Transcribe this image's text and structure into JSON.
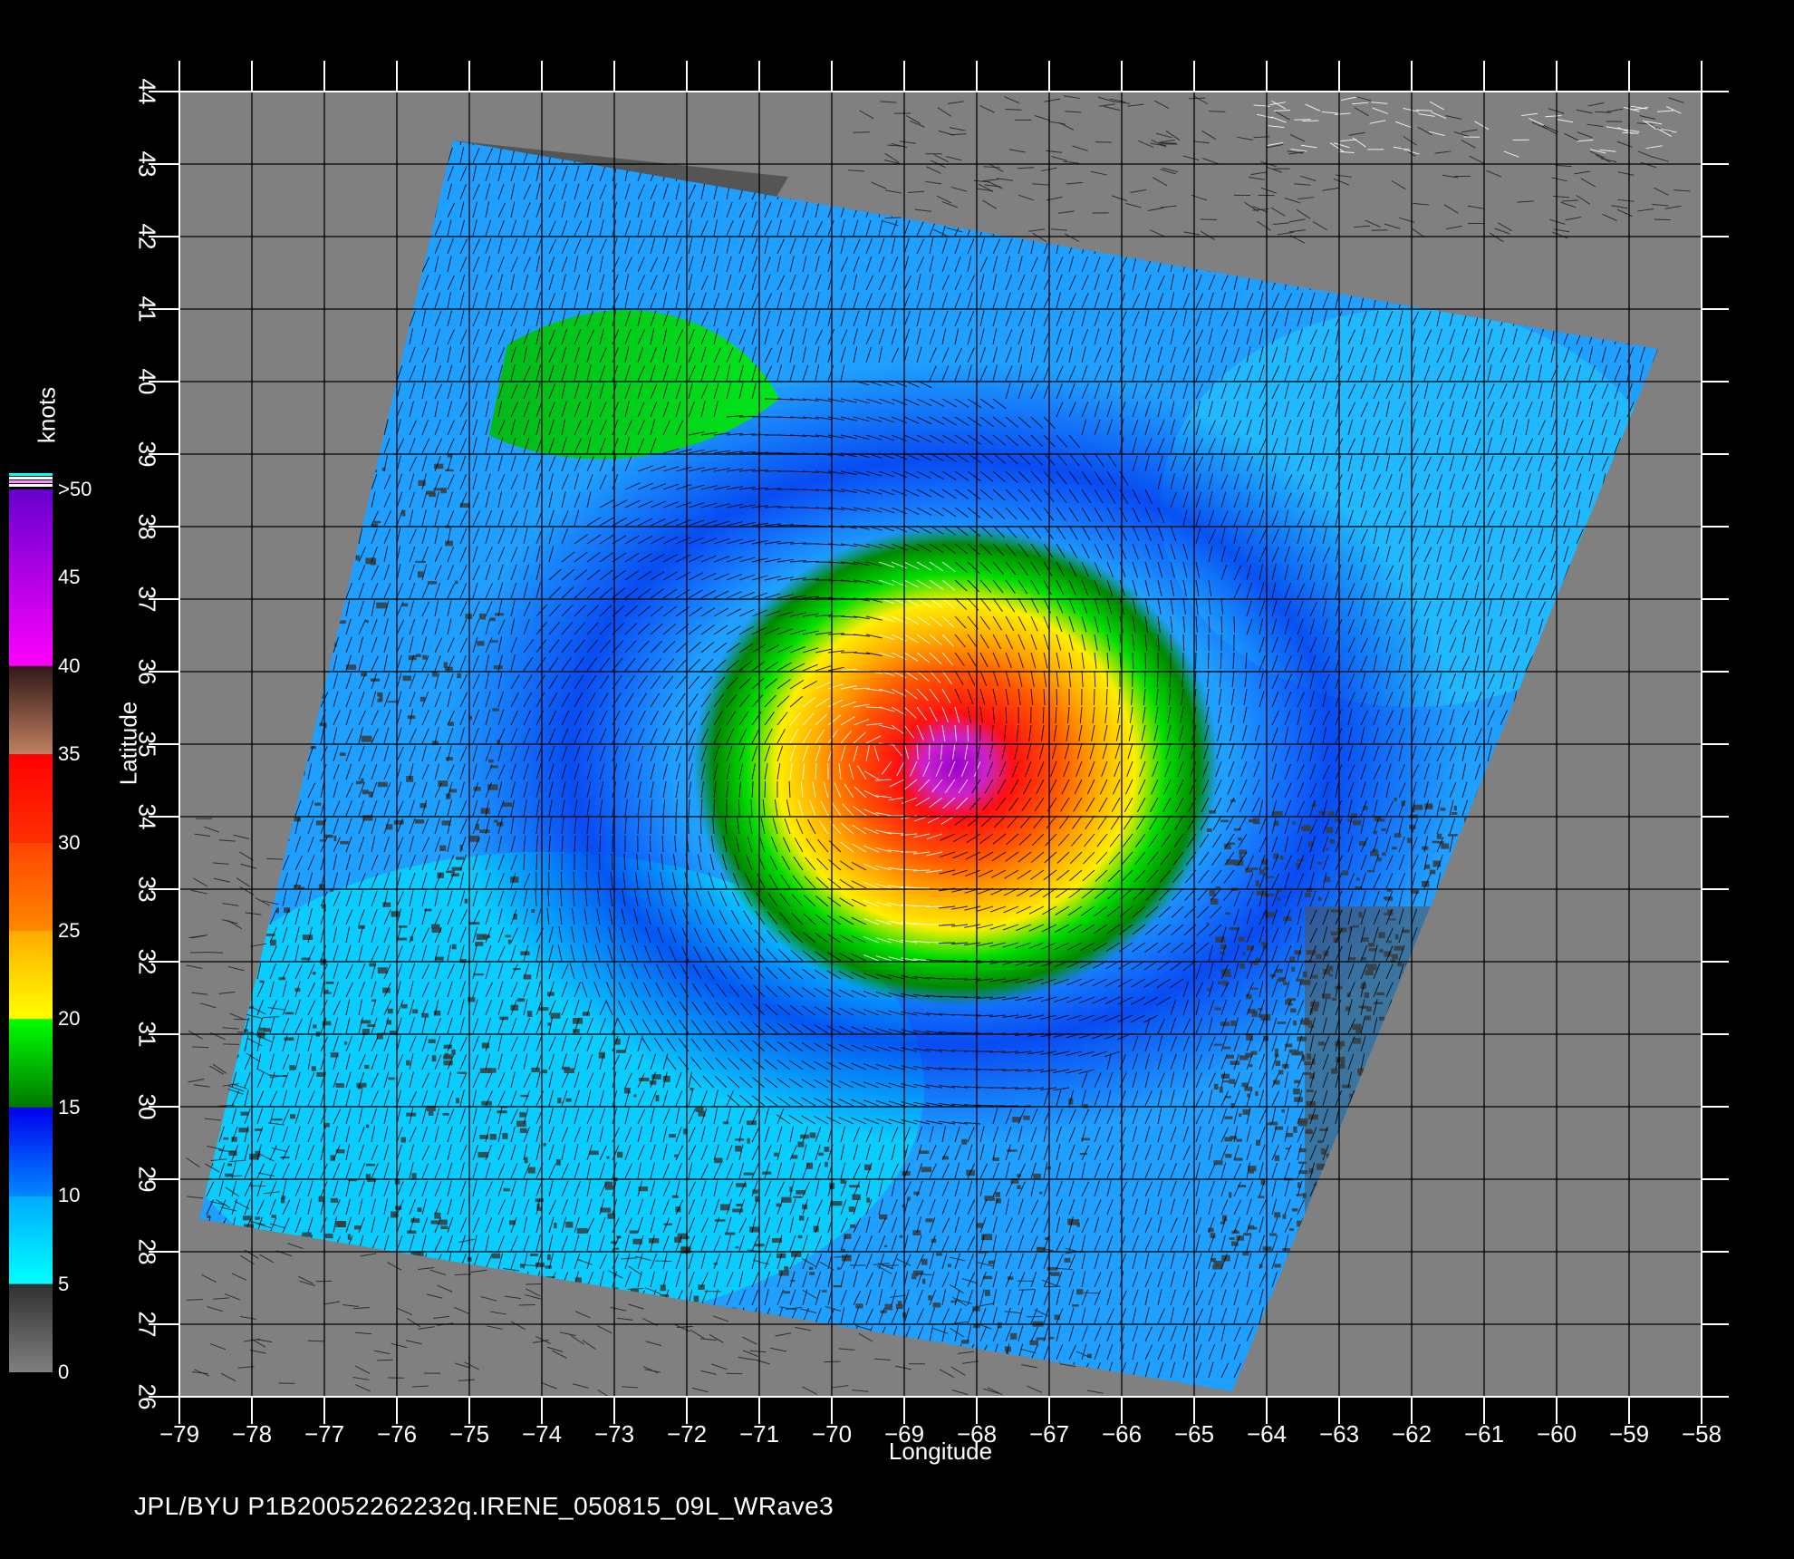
{
  "map": {
    "x_axis_title": "Longitude",
    "y_axis_title": "Latitude",
    "lon_ticks": [
      "-79",
      "-78",
      "-77",
      "-76",
      "-75",
      "-74",
      "-73",
      "-72",
      "-71",
      "-70",
      "-69",
      "-68",
      "-67",
      "-66",
      "-65",
      "-64",
      "-63",
      "-62",
      "-61",
      "-60",
      "-59",
      "-58"
    ],
    "lat_ticks": [
      "26",
      "27",
      "28",
      "29",
      "30",
      "31",
      "32",
      "33",
      "34",
      "35",
      "36",
      "37",
      "38",
      "39",
      "40",
      "41",
      "42",
      "43",
      "44"
    ],
    "lon_range": [
      -79,
      -58
    ],
    "lat_range": [
      26,
      44
    ],
    "storm_center": {
      "lon": -69.3,
      "lat": 34.8
    },
    "land_color": "#808080",
    "swath_edge_color": "#555555"
  },
  "colorbar": {
    "unit": "knots",
    "labels": [
      ">50",
      "45",
      "40",
      "35",
      "30",
      "25",
      "20",
      "15",
      "10",
      "5",
      "0"
    ],
    "bands": [
      {
        "from": 0,
        "to": 5,
        "colors": [
          "#808080",
          "#303030"
        ]
      },
      {
        "from": 5,
        "to": 10,
        "colors": [
          "#00ffff",
          "#00aaff"
        ]
      },
      {
        "from": 10,
        "to": 15,
        "colors": [
          "#0088ff",
          "#0000ee"
        ]
      },
      {
        "from": 15,
        "to": 20,
        "colors": [
          "#007700",
          "#00ff00"
        ]
      },
      {
        "from": 20,
        "to": 25,
        "colors": [
          "#ffff00",
          "#ffaa00"
        ]
      },
      {
        "from": 25,
        "to": 30,
        "colors": [
          "#ff8800",
          "#ff4400"
        ]
      },
      {
        "from": 30,
        "to": 35,
        "colors": [
          "#ff3000",
          "#ff0000"
        ]
      },
      {
        "from": 35,
        "to": 40,
        "colors": [
          "#c08060",
          "#301818"
        ]
      },
      {
        "from": 40,
        "to": 50,
        "colors": [
          "#ff00ff",
          "#6600cc"
        ]
      }
    ]
  },
  "footer": {
    "text": "JPL/BYU  P1B20052262232q.IRENE_050815_09L_WRave3"
  }
}
